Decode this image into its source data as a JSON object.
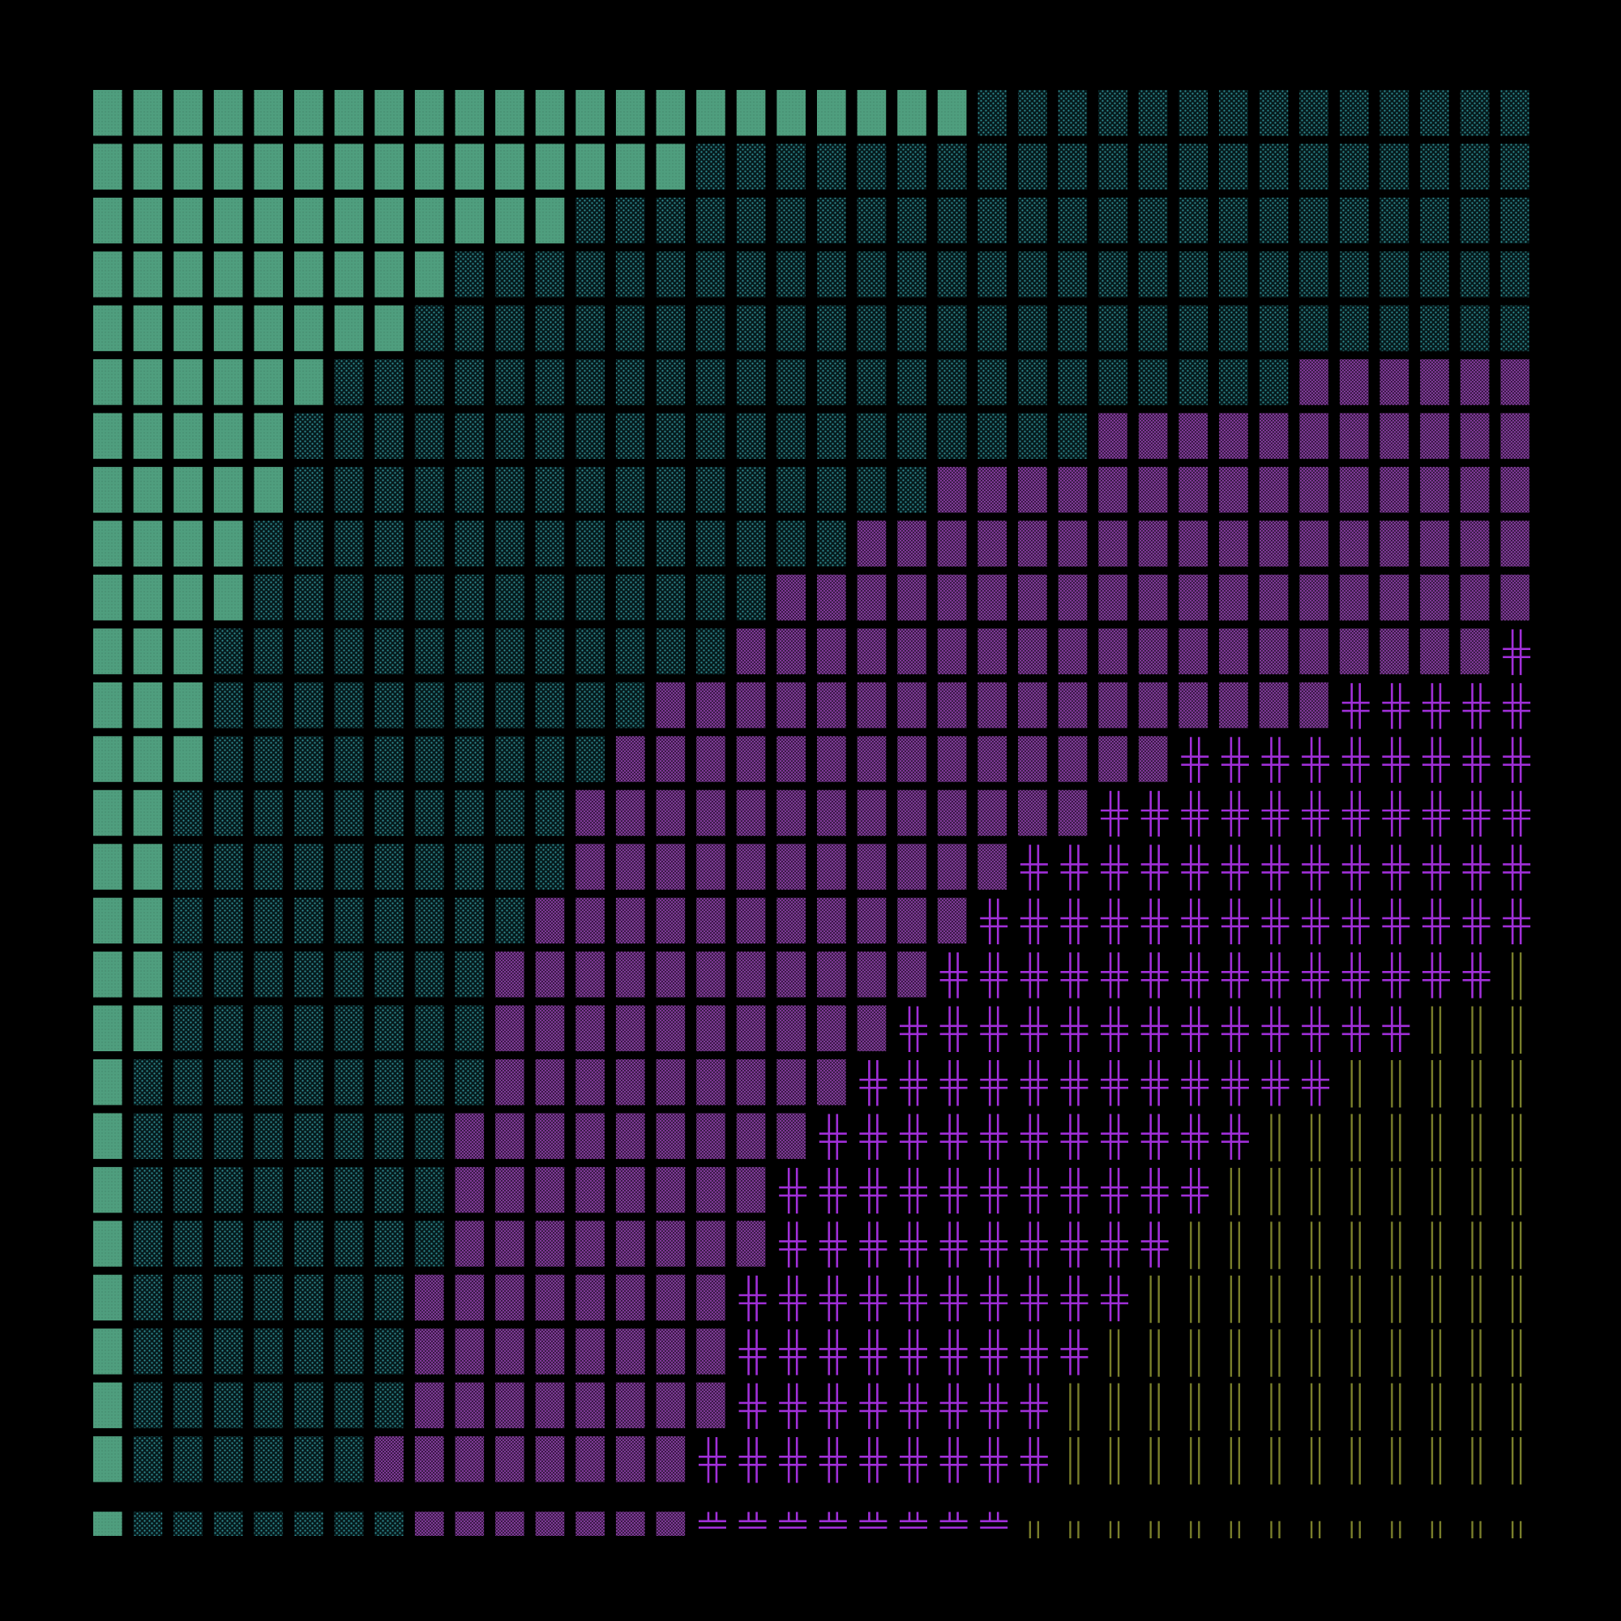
{
  "background": "#000000",
  "grid": {
    "columns": 36,
    "rows": 27
  },
  "regions": [
    {
      "id": "solid-block",
      "glyph": "█",
      "color": "#4f9e7e"
    },
    {
      "id": "dotted-block",
      "glyph": "░",
      "color": "#2f8c92"
    },
    {
      "id": "medium-shade",
      "glyph": "▒",
      "color": "#9a3fba"
    },
    {
      "id": "box-cross",
      "glyph": "╬",
      "color": "#a12fd9"
    },
    {
      "id": "double-bar",
      "glyph": "║",
      "color": "#7a7f2b"
    }
  ],
  "boundaries": {
    "solid_end_col_per_row": [
      22,
      15,
      12,
      9,
      8,
      6,
      5,
      5,
      4,
      4,
      3,
      3,
      3,
      2,
      2,
      2,
      2,
      2,
      1,
      1,
      1,
      1,
      1,
      1,
      1,
      1,
      1
    ],
    "shade_start_col_per_row": [
      36,
      36,
      36,
      36,
      36,
      30,
      25,
      21,
      19,
      17,
      16,
      14,
      13,
      12,
      12,
      11,
      10,
      10,
      10,
      9,
      9,
      9,
      8,
      8,
      8,
      7,
      8
    ],
    "cross_start_col_per_row": [
      36,
      36,
      36,
      36,
      36,
      36,
      36,
      36,
      36,
      36,
      35,
      31,
      27,
      25,
      23,
      22,
      21,
      20,
      19,
      18,
      17,
      17,
      16,
      16,
      16,
      15,
      15
    ],
    "bar_start_col_per_row": [
      36,
      36,
      36,
      36,
      36,
      36,
      36,
      36,
      36,
      36,
      36,
      36,
      36,
      36,
      36,
      36,
      35,
      33,
      31,
      29,
      28,
      27,
      26,
      25,
      24,
      24,
      23
    ]
  }
}
